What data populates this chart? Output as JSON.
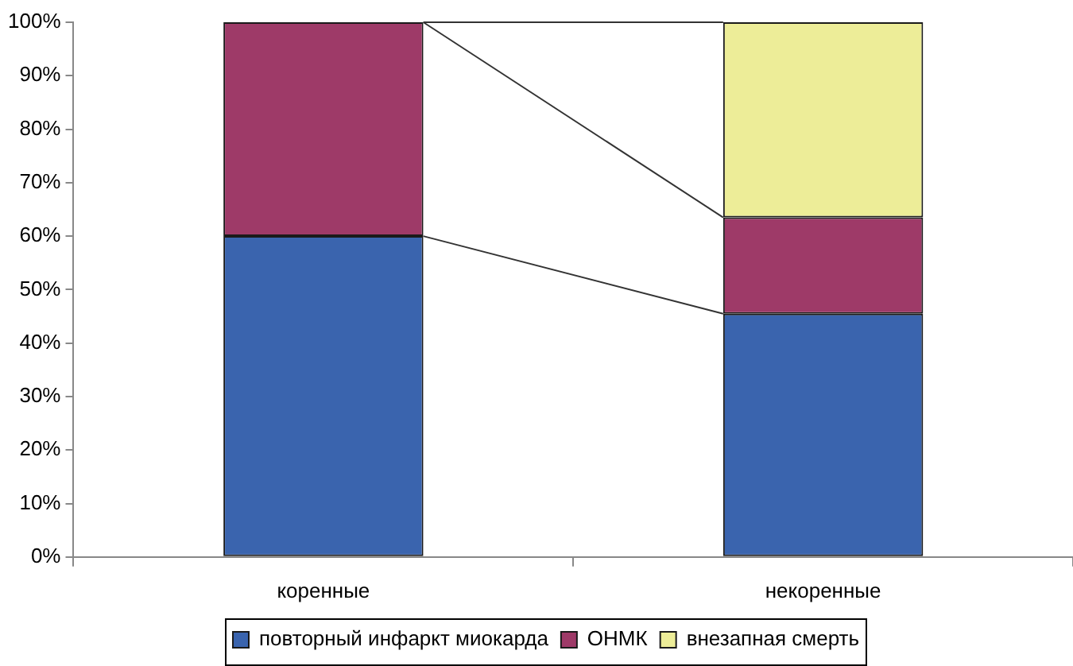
{
  "chart_data": {
    "type": "bar",
    "stacked": true,
    "categories": [
      "коренные",
      "некоренные"
    ],
    "series": [
      {
        "name": "повторный инфаркт миокарда",
        "color": "#3a64ae",
        "values": [
          60,
          45.5
        ]
      },
      {
        "name": "ОНМК",
        "color": "#9e3a68",
        "values": [
          40,
          18
        ]
      },
      {
        "name": "внезапная смерть",
        "color": "#eded98",
        "values": [
          0,
          36.5
        ]
      }
    ],
    "ylim": [
      0,
      100
    ],
    "yticks": [
      {
        "value": 0,
        "label": "0%"
      },
      {
        "value": 10,
        "label": "10%"
      },
      {
        "value": 20,
        "label": "20%"
      },
      {
        "value": 30,
        "label": "30%"
      },
      {
        "value": 40,
        "label": "40%"
      },
      {
        "value": 50,
        "label": "50%"
      },
      {
        "value": 60,
        "label": "60%"
      },
      {
        "value": 70,
        "label": "70%"
      },
      {
        "value": 80,
        "label": "80%"
      },
      {
        "value": 90,
        "label": "90%"
      },
      {
        "value": 100,
        "label": "100%"
      }
    ],
    "grid": false,
    "legend": "bottom"
  }
}
